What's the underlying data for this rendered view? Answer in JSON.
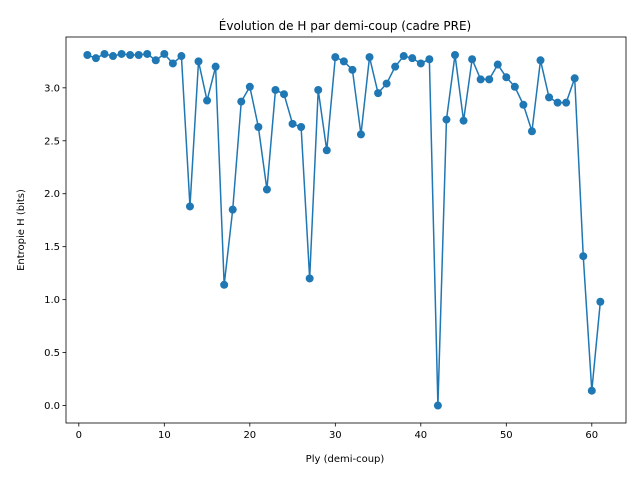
{
  "chart_data": {
    "type": "line",
    "title": "Évolution de H par demi-coup (cadre PRE)",
    "xlabel": "Ply (demi-coup)",
    "ylabel": "Entropie H (bits)",
    "xlim": [
      -1.5,
      64
    ],
    "ylim": [
      -0.165,
      3.48
    ],
    "xticks": [
      0,
      10,
      20,
      30,
      40,
      50,
      60
    ],
    "yticks": [
      0.0,
      0.5,
      1.0,
      1.5,
      2.0,
      2.5,
      3.0
    ],
    "ytick_labels": [
      "0.0",
      "0.5",
      "1.0",
      "1.5",
      "2.0",
      "2.5",
      "3.0"
    ],
    "grid": false,
    "markers": true,
    "color": "#1f77b4",
    "series": [
      {
        "x": [
          1,
          2,
          3,
          4,
          5,
          6,
          7,
          8,
          9,
          10,
          11,
          12,
          13,
          14,
          15,
          16,
          17,
          18,
          19,
          20,
          21,
          22,
          23,
          24,
          25,
          26,
          27,
          28,
          29,
          30,
          31,
          32,
          33,
          34,
          35,
          36,
          37,
          38,
          39,
          40,
          41,
          42,
          43,
          44,
          45,
          46,
          47,
          48,
          49,
          50,
          51,
          52,
          53,
          54,
          55,
          56,
          57,
          58,
          59,
          60,
          61
        ],
        "y": [
          3.31,
          3.28,
          3.32,
          3.3,
          3.32,
          3.31,
          3.31,
          3.32,
          3.26,
          3.32,
          3.23,
          3.3,
          1.88,
          3.25,
          2.88,
          3.2,
          1.14,
          1.85,
          2.87,
          3.01,
          2.63,
          2.04,
          2.98,
          2.94,
          2.66,
          2.63,
          1.2,
          2.98,
          2.41,
          3.29,
          3.25,
          3.17,
          2.56,
          3.29,
          2.95,
          3.04,
          3.2,
          3.3,
          3.28,
          3.23,
          3.27,
          0.0,
          2.7,
          3.31,
          2.69,
          3.27,
          3.08,
          3.08,
          3.22,
          3.1,
          3.01,
          2.84,
          2.59,
          3.26,
          2.91,
          2.86,
          2.86,
          3.09,
          1.41,
          0.14,
          0.98
        ]
      }
    ]
  }
}
